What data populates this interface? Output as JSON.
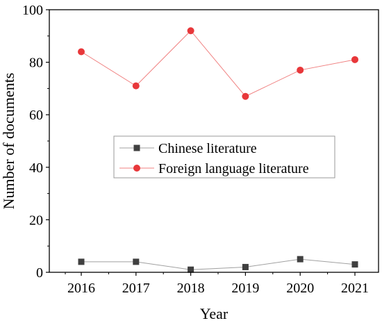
{
  "chart_data": {
    "type": "line",
    "title": "",
    "xlabel": "Year",
    "ylabel": "Number of documents",
    "categories": [
      "2016",
      "2017",
      "2018",
      "2019",
      "2020",
      "2021"
    ],
    "ylim": [
      0,
      100
    ],
    "yticks": [
      "0",
      "20",
      "40",
      "60",
      "80",
      "100"
    ],
    "grid": false,
    "legend_position": "center",
    "series": [
      {
        "name": "Chinese literature",
        "values": [
          4,
          4,
          1,
          2,
          5,
          3
        ],
        "marker": "square",
        "color": "#404040",
        "line_color": "#a0a0a0"
      },
      {
        "name": "Foreign language literature",
        "values": [
          84,
          71,
          92,
          67,
          77,
          81
        ],
        "marker": "circle",
        "color": "#e8373a",
        "line_color": "#f08080"
      }
    ]
  }
}
